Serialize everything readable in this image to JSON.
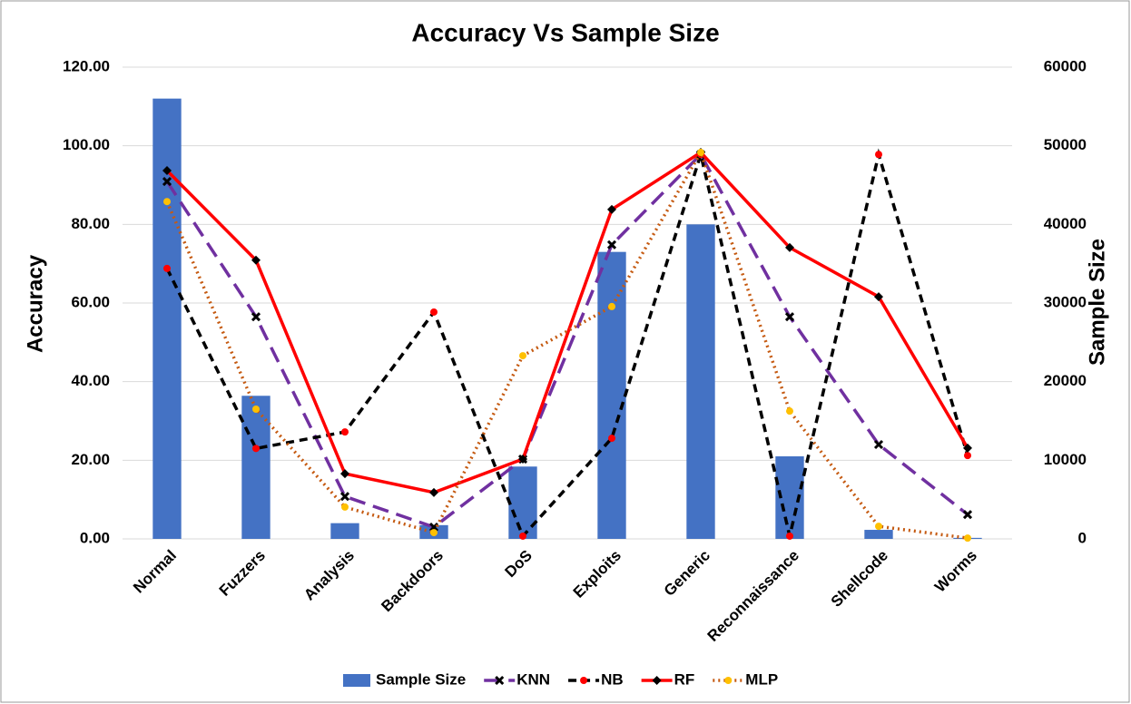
{
  "chart_data": {
    "type": "combo",
    "title": "Accuracy Vs Sample Size",
    "ylabel": "Accuracy",
    "y2label": "Sample Size",
    "categories": [
      "Normal",
      "Fuzzers",
      "Analysis",
      "Backdoors",
      "DoS",
      "Exploits",
      "Generic",
      "Reconnaissance",
      "Shellcode",
      "Worms"
    ],
    "ylim": [
      0,
      120
    ],
    "yticks": [
      {
        "value": 0,
        "label": "0.00"
      },
      {
        "value": 20,
        "label": "20.00"
      },
      {
        "value": 40,
        "label": "40.00"
      },
      {
        "value": 60,
        "label": "60.00"
      },
      {
        "value": 80,
        "label": "80.00"
      },
      {
        "value": 100,
        "label": "100.00"
      },
      {
        "value": 120,
        "label": "120.00"
      }
    ],
    "y2lim": [
      0,
      60000
    ],
    "y2ticks": [
      0,
      10000,
      20000,
      30000,
      40000,
      50000,
      60000
    ],
    "legend": "bottom",
    "series": [
      {
        "name": "Sample Size",
        "type": "bar",
        "axis": "y2",
        "color": "#4472c4",
        "values": [
          56000,
          18200,
          2000,
          1750,
          9200,
          36500,
          40000,
          10500,
          1150,
          130
        ]
      },
      {
        "name": "KNN",
        "type": "line",
        "color": "#7030a0",
        "dash": "longdash",
        "marker": "x",
        "marker_color": "#000000",
        "values": [
          90.9,
          56.5,
          10.8,
          3.0,
          20.3,
          74.8,
          97.8,
          56.5,
          24.0,
          6.2
        ]
      },
      {
        "name": "NB",
        "type": "line",
        "color": "#000000",
        "dash": "dash",
        "marker": "circle",
        "marker_color": "#ff0000",
        "values": [
          68.8,
          23.0,
          27.2,
          57.7,
          0.7,
          25.6,
          97.8,
          0.7,
          97.8,
          21.2
        ]
      },
      {
        "name": "RF",
        "type": "line",
        "color": "#ff0000",
        "dash": "solid",
        "marker": "diamond",
        "marker_color": "#000000",
        "values": [
          93.7,
          70.9,
          16.6,
          11.8,
          20.3,
          83.8,
          98.3,
          74.1,
          61.6,
          23.1
        ]
      },
      {
        "name": "MLP",
        "type": "line",
        "color": "#c55a11",
        "dash": "dot",
        "marker": "circle",
        "marker_color": "#ffc000",
        "values": [
          85.8,
          33.0,
          8.1,
          1.6,
          46.6,
          59.1,
          98.3,
          32.5,
          3.2,
          0.2
        ]
      }
    ]
  }
}
